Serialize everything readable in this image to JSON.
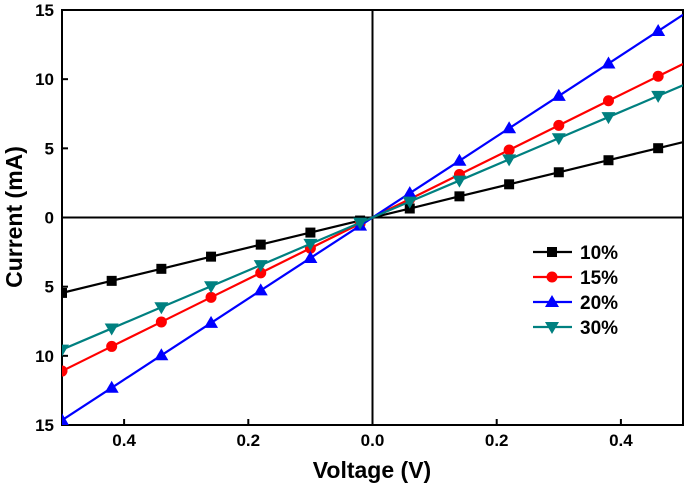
{
  "chart_data": {
    "type": "line",
    "title": "",
    "xlabel": "Voltage (V)",
    "ylabel": "Current (mA)",
    "xlim": [
      -0.5,
      0.5
    ],
    "ylim": [
      -15,
      15
    ],
    "x_ticks": [
      -0.4,
      -0.2,
      0.0,
      0.2,
      0.4
    ],
    "x_tick_labels": [
      "0.4",
      "0.2",
      "0.0",
      "0.2",
      "0.4"
    ],
    "y_ticks": [
      15,
      10,
      5,
      0,
      -5,
      -10,
      -15
    ],
    "y_tick_labels": [
      "15",
      "10",
      "5",
      "0",
      "5",
      "10",
      "15"
    ],
    "grid": false,
    "legend_position": "center-right",
    "x": [
      -0.5,
      -0.42,
      -0.34,
      -0.26,
      -0.18,
      -0.1,
      -0.02,
      0.06,
      0.14,
      0.22,
      0.3,
      0.38,
      0.46
    ],
    "series": [
      {
        "name": "10%",
        "color": "#000000",
        "marker": "square",
        "values": [
          -5.45,
          -4.58,
          -3.71,
          -2.83,
          -1.96,
          -1.09,
          -0.22,
          0.65,
          1.53,
          2.4,
          3.27,
          4.14,
          5.01
        ]
      },
      {
        "name": "15%",
        "color": "#ff0000",
        "marker": "circle",
        "values": [
          -11.1,
          -9.32,
          -7.55,
          -5.77,
          -4.0,
          -2.22,
          -0.44,
          1.33,
          3.11,
          4.88,
          6.66,
          8.44,
          10.21
        ]
      },
      {
        "name": "20%",
        "color": "#0000ff",
        "marker": "triangle-up",
        "values": [
          -14.65,
          -12.31,
          -9.96,
          -7.62,
          -5.27,
          -2.93,
          -0.59,
          1.76,
          4.1,
          6.45,
          8.79,
          11.13,
          13.48
        ]
      },
      {
        "name": "30%",
        "color": "#008080",
        "marker": "triangle-down",
        "values": [
          -9.55,
          -8.02,
          -6.49,
          -4.97,
          -3.44,
          -1.91,
          -0.38,
          1.15,
          2.67,
          4.2,
          5.73,
          7.26,
          8.79
        ]
      }
    ]
  }
}
